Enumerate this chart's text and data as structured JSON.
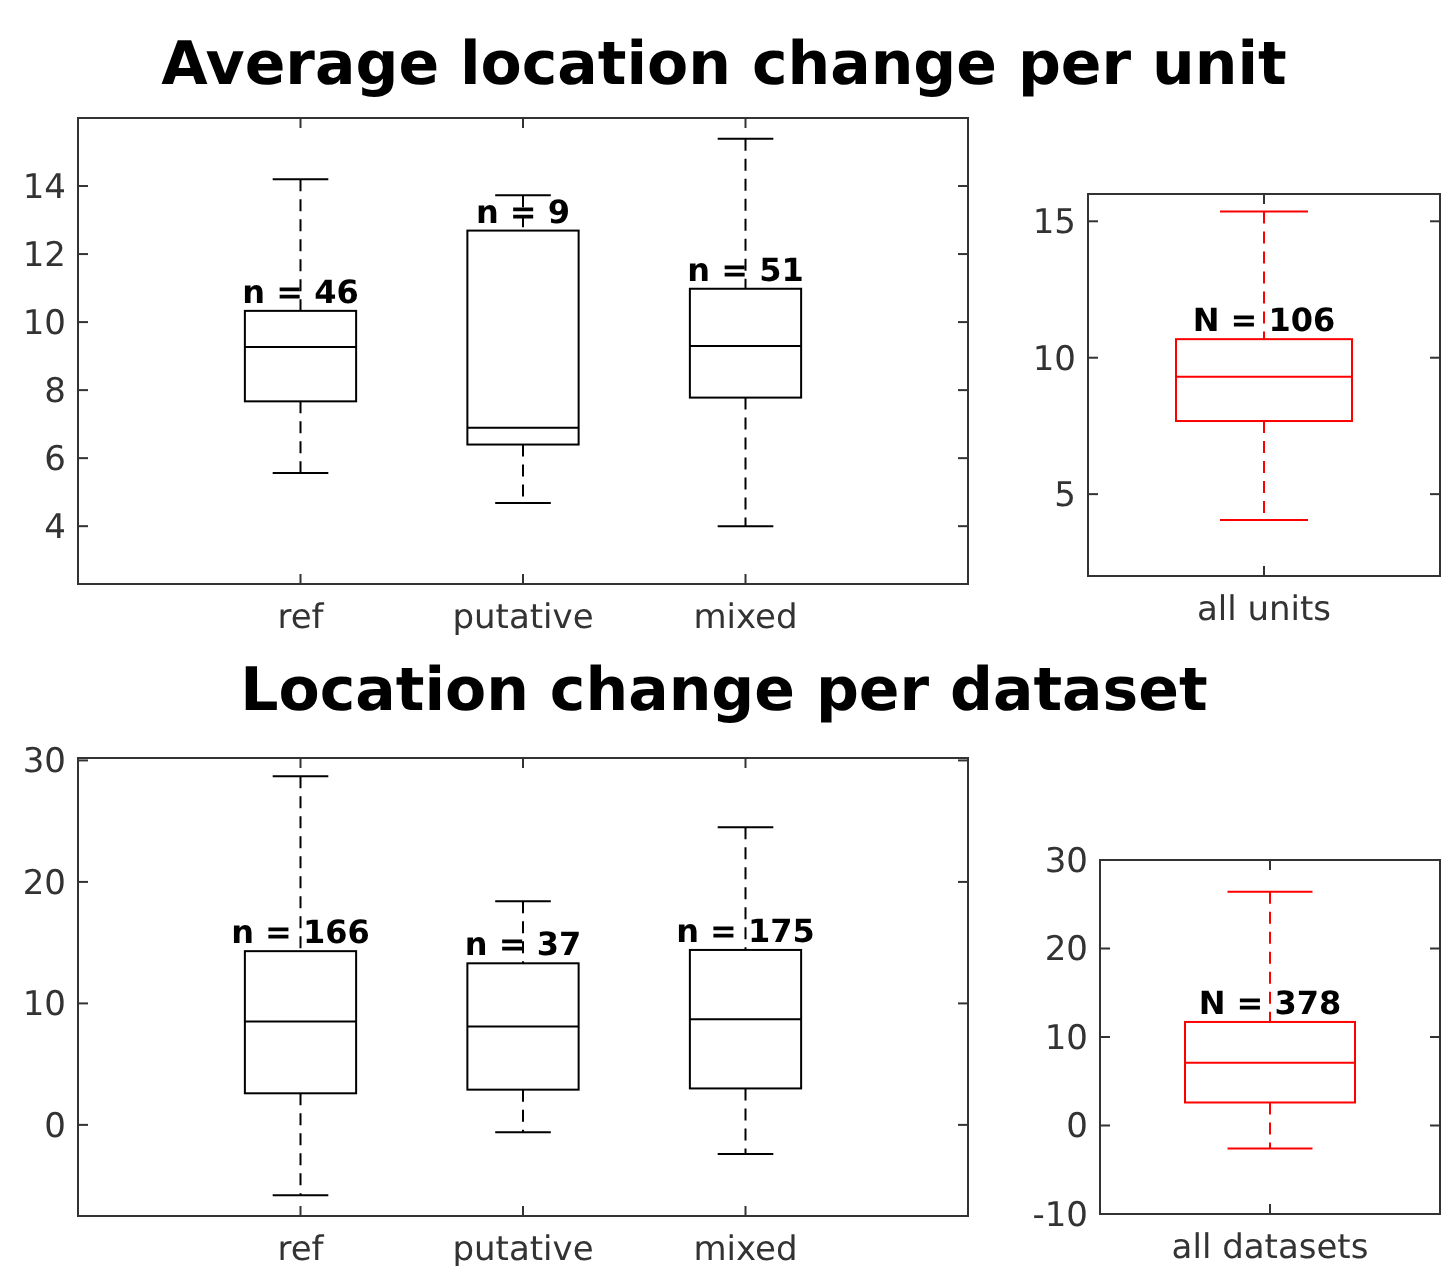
{
  "chart_data": [
    {
      "type": "box",
      "title": "Average location change per unit",
      "categories": [
        "ref",
        "putative",
        "mixed"
      ],
      "ylim": [
        2.3,
        16
      ],
      "yticks": [
        4,
        6,
        8,
        10,
        12,
        14
      ],
      "series": [
        {
          "color": "#000000",
          "boxes": [
            {
              "low": 5.56,
              "q1": 7.67,
              "median": 9.27,
              "q3": 10.33,
              "high": 14.2
            },
            {
              "low": 4.68,
              "q1": 6.4,
              "median": 6.89,
              "q3": 12.69,
              "high": 13.73
            },
            {
              "low": 4.0,
              "q1": 7.78,
              "median": 9.3,
              "q3": 10.98,
              "high": 15.39
            }
          ]
        }
      ],
      "annotations": [
        {
          "text": "n = 46",
          "x": "ref",
          "y": 10.33
        },
        {
          "text": "n = 9",
          "x": "putative",
          "y": 12.69
        },
        {
          "text": "n = 51",
          "x": "mixed",
          "y": 10.98
        }
      ]
    },
    {
      "type": "box",
      "categories": [
        "all units"
      ],
      "ylim": [
        2,
        16
      ],
      "yticks": [
        5,
        10,
        15
      ],
      "series": [
        {
          "color": "#ff0000",
          "boxes": [
            {
              "low": 4.05,
              "q1": 7.68,
              "median": 9.3,
              "q3": 10.68,
              "high": 15.36
            }
          ]
        }
      ],
      "annotations": [
        {
          "text": "N = 106",
          "x": "all units",
          "y": 10.68
        }
      ]
    },
    {
      "type": "box",
      "title": "Location change per dataset",
      "categories": [
        "ref",
        "putative",
        "mixed"
      ],
      "ylim": [
        -7.5,
        30.2
      ],
      "yticks": [
        0,
        10,
        20,
        30
      ],
      "series": [
        {
          "color": "#000000",
          "boxes": [
            {
              "low": -5.8,
              "q1": 2.6,
              "median": 8.5,
              "q3": 14.3,
              "high": 28.7
            },
            {
              "low": -0.6,
              "q1": 2.9,
              "median": 8.1,
              "q3": 13.3,
              "high": 18.4
            },
            {
              "low": -2.4,
              "q1": 3.0,
              "median": 8.7,
              "q3": 14.4,
              "high": 24.5
            }
          ]
        }
      ],
      "annotations": [
        {
          "text": "n = 166",
          "x": "ref",
          "y": 14.3
        },
        {
          "text": "n = 37",
          "x": "putative",
          "y": 13.3
        },
        {
          "text": "n = 175",
          "x": "mixed",
          "y": 14.4
        }
      ]
    },
    {
      "type": "box",
      "categories": [
        "all datasets"
      ],
      "ylim": [
        -10,
        30
      ],
      "yticks": [
        -10,
        0,
        10,
        20,
        30
      ],
      "series": [
        {
          "color": "#ff0000",
          "boxes": [
            {
              "low": -2.6,
              "q1": 2.6,
              "median": 7.1,
              "q3": 11.7,
              "high": 26.4
            }
          ]
        }
      ],
      "annotations": [
        {
          "text": "N = 378",
          "x": "all datasets",
          "y": 11.7
        }
      ]
    }
  ]
}
